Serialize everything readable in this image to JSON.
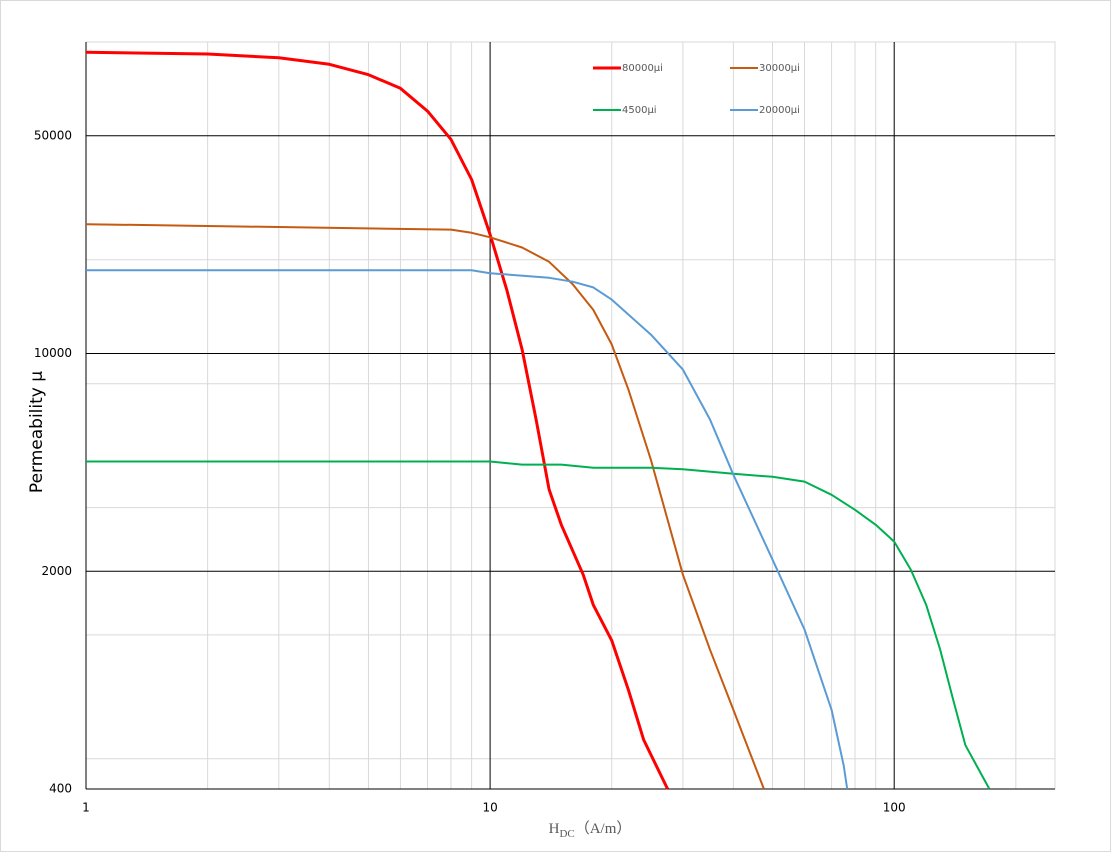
{
  "chart_data": {
    "type": "line",
    "x_label": {
      "main": "H",
      "sub": "DC",
      "unit": "（A/m）"
    },
    "y_label": "Permeability μ",
    "log_x": true,
    "log_y": true,
    "xlim": [
      1,
      250
    ],
    "ylim": [
      400,
      100000
    ],
    "xticks": [
      1,
      10,
      100
    ],
    "yticks": [
      400,
      2000,
      10000,
      50000
    ],
    "minor_xgrid": [
      2,
      3,
      4,
      5,
      6,
      7,
      8,
      9,
      20,
      30,
      40,
      50,
      60,
      70,
      80,
      90,
      200
    ],
    "minor_ygrid": [
      20000,
      8000,
      3200,
      1250,
      500
    ],
    "grid": true,
    "legend": "top",
    "series": [
      {
        "name": "80000μi",
        "color": "#ff0000",
        "x": [
          1,
          2,
          3,
          4,
          5,
          6,
          7,
          8,
          9,
          10,
          11,
          12,
          13,
          14,
          15,
          17,
          18,
          20,
          22,
          24,
          27.5
        ],
        "values": [
          92700,
          91500,
          89000,
          84800,
          78500,
          71000,
          60000,
          48700,
          36200,
          24100,
          16000,
          10300,
          6140,
          3660,
          2820,
          1950,
          1560,
          1200,
          830,
          575,
          400
        ]
      },
      {
        "name": "30000μi",
        "color": "#c55a11",
        "x": [
          1,
          8,
          9,
          10,
          12,
          14,
          16,
          18,
          20,
          22,
          25,
          30,
          35,
          40,
          47.6
        ],
        "values": [
          26000,
          25000,
          24400,
          23600,
          21900,
          19700,
          16700,
          13800,
          10700,
          7650,
          4560,
          1950,
          1120,
          718,
          400
        ]
      },
      {
        "name": "4500μi",
        "color": "#00b050",
        "x": [
          1,
          10,
          12,
          15,
          18,
          25,
          30,
          40,
          50,
          60,
          70,
          80,
          90,
          100,
          110,
          120,
          130,
          140,
          150,
          172
        ],
        "values": [
          4500,
          4500,
          4400,
          4400,
          4300,
          4300,
          4250,
          4110,
          4020,
          3880,
          3520,
          3150,
          2820,
          2490,
          2020,
          1560,
          1120,
          773,
          553,
          400
        ]
      },
      {
        "name": "20000μi",
        "color": "#5b9bd5",
        "x": [
          1,
          9,
          10,
          14,
          16,
          18,
          20,
          25,
          30,
          35,
          40,
          50,
          60,
          70,
          75,
          76.5
        ],
        "values": [
          18500,
          18500,
          18100,
          17500,
          17000,
          16300,
          14900,
          11500,
          8880,
          6140,
          4080,
          2180,
          1300,
          718,
          476,
          400
        ]
      }
    ]
  }
}
